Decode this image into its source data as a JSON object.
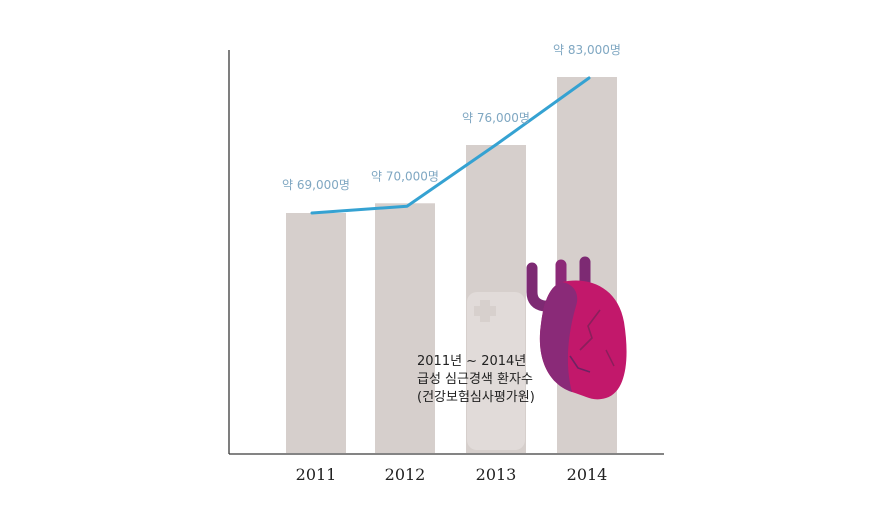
{
  "chart_data": {
    "type": "bar",
    "categories": [
      "2011",
      "2012",
      "2013",
      "2014"
    ],
    "values": [
      69000,
      70000,
      76000,
      83000
    ],
    "data_labels": [
      "약 69,000명",
      "약 70,000명",
      "약 76,000명",
      "약 83,000명"
    ],
    "trend_line": true,
    "title": "",
    "xlabel": "",
    "ylabel": "",
    "grid": false,
    "annotation": [
      "2011년 ~ 2014년",
      "급성 심근경색 환자수",
      "(건강보험심사평가원)"
    ]
  },
  "colors": {
    "bar": "#d6cfcc",
    "line": "#35a2d2",
    "label": "#7fa7c2",
    "heart_main": "#c2186b",
    "heart_dark": "#7d2a73"
  },
  "decorations": [
    "heart-icon",
    "hospital-cross-watermark"
  ]
}
